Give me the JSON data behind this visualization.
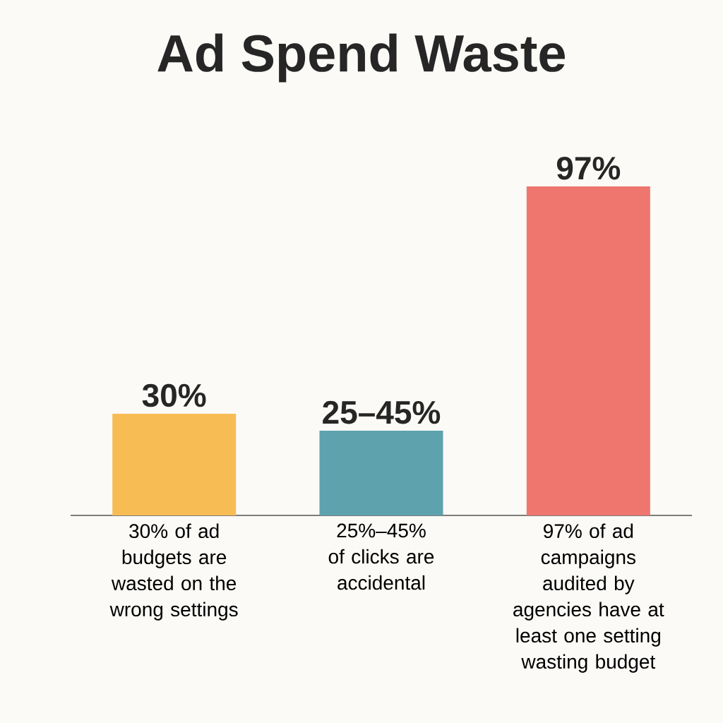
{
  "chart_data": {
    "type": "bar",
    "title": "Ad Spend Waste",
    "categories": [
      "30% of ad budgets are wasted on the wrong settings",
      "25%–45% of clicks are accidental",
      "97% of ad campaigns audited by agencies have at least one setting wasting budget"
    ],
    "values": [
      30,
      25,
      97
    ],
    "colors": [
      "#f8bc55",
      "#5ea2ae",
      "#ee766f"
    ],
    "value_labels": [
      "30%",
      "25–45%",
      "97%"
    ]
  }
}
